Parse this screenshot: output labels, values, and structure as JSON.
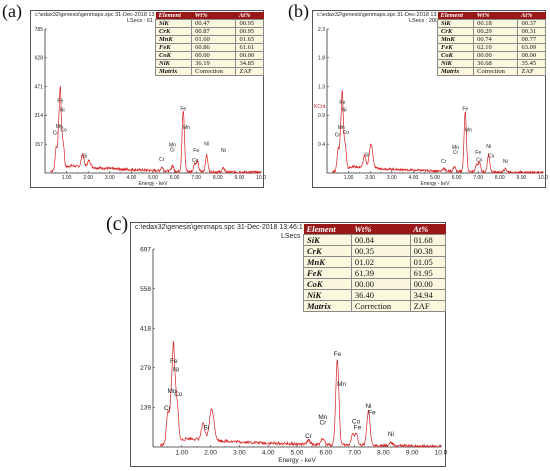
{
  "panels": [
    {
      "tag": "(a)",
      "file": "c:\\edax32\\genesis\\genmaps.spc",
      "date": "31-Dec-2018 13:53:",
      "lsec": "LSecs : 61",
      "chart_data": {
        "type": "line",
        "xlabel": "Energy - keV",
        "xticks": [
          "1.00",
          "2.00",
          "3.00",
          "4.00",
          "5.00",
          "6.00",
          "7.00",
          "8.00",
          "9.00",
          "10.0"
        ],
        "xlim": [
          0,
          10
        ],
        "yticks": [
          "157",
          "314",
          "471",
          "628",
          "785"
        ],
        "ylim": [
          0,
          785
        ],
        "peaks": [
          {
            "x": 0.52,
            "y": 125,
            "w": 0.05
          },
          {
            "x": 0.64,
            "y": 228,
            "w": 0.04
          },
          {
            "x": 0.71,
            "y": 370,
            "w": 0.035
          },
          {
            "x": 0.78,
            "y": 150,
            "w": 0.04
          },
          {
            "x": 0.86,
            "y": 110,
            "w": 0.04
          },
          {
            "x": 1.74,
            "y": 70,
            "w": 0.06
          },
          {
            "x": 2.04,
            "y": 35,
            "w": 0.08
          },
          {
            "x": 5.41,
            "y": 20,
            "w": 0.05
          },
          {
            "x": 5.9,
            "y": 30,
            "w": 0.05
          },
          {
            "x": 6.4,
            "y": 330,
            "w": 0.055
          },
          {
            "x": 6.93,
            "y": 45,
            "w": 0.05
          },
          {
            "x": 7.06,
            "y": 55,
            "w": 0.05
          },
          {
            "x": 7.48,
            "y": 90,
            "w": 0.055
          },
          {
            "x": 8.26,
            "y": 20,
            "w": 0.06
          }
        ],
        "baseline": 40,
        "labels": [
          {
            "text": "Fe",
            "x": 0.71,
            "y": 385
          },
          {
            "text": "Ni",
            "x": 0.8,
            "y": 335
          },
          {
            "text": "Mn",
            "x": 0.66,
            "y": 245
          },
          {
            "text": "Cr",
            "x": 0.48,
            "y": 210
          },
          {
            "text": "Co",
            "x": 0.86,
            "y": 225
          },
          {
            "text": "Si",
            "x": 1.85,
            "y": 85
          },
          {
            "text": "Fe",
            "x": 6.4,
            "y": 340
          },
          {
            "text": "Mn",
            "x": 6.55,
            "y": 240
          },
          {
            "text": "Mn",
            "x": 5.9,
            "y": 145
          },
          {
            "text": "Cr",
            "x": 5.9,
            "y": 118
          },
          {
            "text": "Cr",
            "x": 5.4,
            "y": 65
          },
          {
            "text": "Ni",
            "x": 7.48,
            "y": 150
          },
          {
            "text": "Fe",
            "x": 7.0,
            "y": 115
          },
          {
            "text": "Co",
            "x": 6.95,
            "y": 60
          },
          {
            "text": "Ni",
            "x": 8.26,
            "y": 115
          }
        ]
      },
      "table": {
        "headers": [
          "Element",
          "Wt%",
          "At%"
        ],
        "rows": [
          [
            "SiK",
            "00.47",
            "00.95"
          ],
          [
            "CrK",
            "00.87",
            "00.95"
          ],
          [
            "MnK",
            "01.60",
            "01.65"
          ],
          [
            "FeK",
            "60.86",
            "61.61"
          ],
          [
            "CoK",
            "00.00",
            "00.00"
          ],
          [
            "NiK",
            "36.19",
            "34.85"
          ],
          [
            "Matrix",
            "Correction",
            "ZAF"
          ]
        ]
      }
    },
    {
      "tag": "(b)",
      "file": "c:\\edax32\\genesis\\genmaps.spc",
      "date": "31-Dec-2018 13:32:",
      "lsec": "LSecs : 200",
      "chart_data": {
        "type": "line",
        "xlabel": "Energy - keV",
        "xticks": [
          "1.00",
          "2.00",
          "3.00",
          "4.00",
          "5.00",
          "6.00",
          "7.00",
          "8.00",
          "9.00",
          "10.0"
        ],
        "xlim": [
          0,
          10
        ],
        "yticks": [
          "0.4",
          "0.9",
          "1.3",
          "1.8",
          "2.3"
        ],
        "ylim": [
          0,
          2.3
        ],
        "cursor_label": "KCnt",
        "peaks": [
          {
            "x": 0.52,
            "y": 0.36,
            "w": 0.05
          },
          {
            "x": 0.64,
            "y": 0.62,
            "w": 0.04
          },
          {
            "x": 0.71,
            "y": 1.05,
            "w": 0.035
          },
          {
            "x": 0.78,
            "y": 0.42,
            "w": 0.04
          },
          {
            "x": 0.86,
            "y": 0.3,
            "w": 0.04
          },
          {
            "x": 1.74,
            "y": 0.2,
            "w": 0.06
          },
          {
            "x": 2.04,
            "y": 0.38,
            "w": 0.08
          },
          {
            "x": 5.41,
            "y": 0.05,
            "w": 0.05
          },
          {
            "x": 5.9,
            "y": 0.08,
            "w": 0.05
          },
          {
            "x": 6.4,
            "y": 0.95,
            "w": 0.055
          },
          {
            "x": 6.93,
            "y": 0.12,
            "w": 0.05
          },
          {
            "x": 7.06,
            "y": 0.16,
            "w": 0.05
          },
          {
            "x": 7.48,
            "y": 0.27,
            "w": 0.055
          },
          {
            "x": 8.26,
            "y": 0.05,
            "w": 0.06
          }
        ],
        "baseline": 0.1,
        "labels": [
          {
            "text": "Fe",
            "x": 0.71,
            "y": 1.1
          },
          {
            "text": "Ni",
            "x": 0.8,
            "y": 0.98
          },
          {
            "text": "Mn",
            "x": 0.66,
            "y": 0.7
          },
          {
            "text": "Cr",
            "x": 0.48,
            "y": 0.58
          },
          {
            "text": "Co",
            "x": 0.87,
            "y": 0.62
          },
          {
            "text": "Si",
            "x": 1.85,
            "y": 0.26
          },
          {
            "text": "Fe",
            "x": 6.4,
            "y": 1.0
          },
          {
            "text": "Mn",
            "x": 6.55,
            "y": 0.66
          },
          {
            "text": "Mn",
            "x": 5.95,
            "y": 0.38
          },
          {
            "text": "Cr",
            "x": 5.95,
            "y": 0.3
          },
          {
            "text": "Cr",
            "x": 5.4,
            "y": 0.16
          },
          {
            "text": "Ni",
            "x": 7.48,
            "y": 0.4
          },
          {
            "text": "Fe",
            "x": 7.0,
            "y": 0.3
          },
          {
            "text": "Co",
            "x": 7.6,
            "y": 0.25
          },
          {
            "text": "Co",
            "x": 7.05,
            "y": 0.18
          },
          {
            "text": "Ni",
            "x": 8.26,
            "y": 0.16
          }
        ]
      },
      "table": {
        "headers": [
          "Element",
          "Wt%",
          "At%"
        ],
        "rows": [
          [
            "SiK",
            "00.18",
            "00.37"
          ],
          [
            "CrK",
            "00.29",
            "00.31"
          ],
          [
            "MnK",
            "00.74",
            "00.77"
          ],
          [
            "FeK",
            "62.10",
            "63.09"
          ],
          [
            "CoK",
            "00.00",
            "00.00"
          ],
          [
            "NiK",
            "36.68",
            "35.45"
          ],
          [
            "Matrix",
            "Correction",
            "ZAF"
          ]
        ]
      }
    },
    {
      "tag": "(c)",
      "file": "c:\\edax32\\genesis\\genmaps.spc",
      "date": "31-Dec-2018 13:46:1",
      "lsec": "LSecs : 63",
      "chart_data": {
        "type": "line",
        "xlabel": "Energy - keV",
        "xticks": [
          "1.00",
          "2.00",
          "3.00",
          "4.00",
          "5.00",
          "6.00",
          "7.00",
          "8.00",
          "9.00",
          "10.0"
        ],
        "xlim": [
          0,
          10
        ],
        "yticks": [
          "139",
          "279",
          "418",
          "558",
          "697"
        ],
        "ylim": [
          0,
          697
        ],
        "peaks": [
          {
            "x": 0.52,
            "y": 115,
            "w": 0.05
          },
          {
            "x": 0.64,
            "y": 170,
            "w": 0.04
          },
          {
            "x": 0.71,
            "y": 280,
            "w": 0.035
          },
          {
            "x": 0.78,
            "y": 160,
            "w": 0.04
          },
          {
            "x": 0.86,
            "y": 100,
            "w": 0.04
          },
          {
            "x": 1.74,
            "y": 55,
            "w": 0.06
          },
          {
            "x": 2.04,
            "y": 110,
            "w": 0.08
          },
          {
            "x": 5.41,
            "y": 15,
            "w": 0.05
          },
          {
            "x": 5.9,
            "y": 25,
            "w": 0.05
          },
          {
            "x": 6.4,
            "y": 300,
            "w": 0.055
          },
          {
            "x": 6.93,
            "y": 40,
            "w": 0.05
          },
          {
            "x": 7.06,
            "y": 40,
            "w": 0.05
          },
          {
            "x": 7.48,
            "y": 120,
            "w": 0.055
          },
          {
            "x": 8.26,
            "y": 10,
            "w": 0.06
          }
        ],
        "baseline": 30,
        "labels": [
          {
            "text": "Fe",
            "x": 0.72,
            "y": 295
          },
          {
            "text": "Ni",
            "x": 0.8,
            "y": 265
          },
          {
            "text": "Mn",
            "x": 0.66,
            "y": 190
          },
          {
            "text": "Co",
            "x": 0.88,
            "y": 180
          },
          {
            "text": "Cr",
            "x": 0.5,
            "y": 130
          },
          {
            "text": "Si",
            "x": 1.85,
            "y": 62
          },
          {
            "text": "Fe",
            "x": 6.4,
            "y": 320
          },
          {
            "text": "Mn",
            "x": 6.55,
            "y": 215
          },
          {
            "text": "Mn",
            "x": 5.9,
            "y": 98
          },
          {
            "text": "Cr",
            "x": 5.9,
            "y": 80
          },
          {
            "text": "Cr",
            "x": 5.4,
            "y": 32
          },
          {
            "text": "Ni",
            "x": 7.48,
            "y": 138
          },
          {
            "text": "Fe",
            "x": 7.6,
            "y": 115
          },
          {
            "text": "Co",
            "x": 7.05,
            "y": 82
          },
          {
            "text": "Fe",
            "x": 7.1,
            "y": 62
          },
          {
            "text": "Ni",
            "x": 8.26,
            "y": 38
          }
        ]
      },
      "table": {
        "headers": [
          "Element",
          "Wt%",
          "At%"
        ],
        "rows": [
          [
            "SiK",
            "00.84",
            "01.68"
          ],
          [
            "CrK",
            "00.35",
            "00.38"
          ],
          [
            "MnK",
            "01.02",
            "01.05"
          ],
          [
            "FeK",
            "61.39",
            "61.95"
          ],
          [
            "CoK",
            "00.00",
            "00.00"
          ],
          [
            "NiK",
            "36.40",
            "34.94"
          ],
          [
            "Matrix",
            "Correction",
            "ZAF"
          ]
        ]
      }
    }
  ],
  "colors": {
    "spectrum": "#d92020",
    "axis": "#333333",
    "table_header_bg": "#9a1717",
    "table_header_text": "#ffffff",
    "table_body_bg": "#fbf7df"
  }
}
